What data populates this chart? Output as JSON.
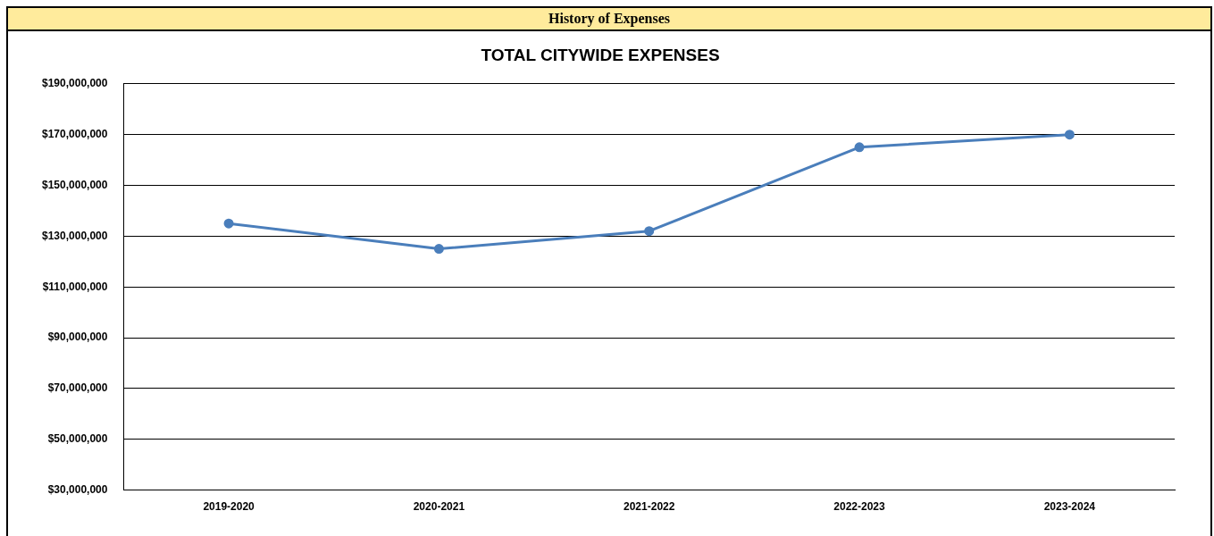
{
  "chart_data": {
    "type": "line",
    "title": "History of Expenses",
    "subtitle": "TOTAL CITYWIDE EXPENSES",
    "categories": [
      "2019-2020",
      "2020-2021",
      "2021-2022",
      "2022-2023",
      "2023-2024"
    ],
    "series": [
      {
        "color": "#4a7ebb",
        "values": [
          135000000,
          125000000,
          132000000,
          165000000,
          170000000
        ]
      }
    ],
    "ylim": [
      30000000,
      190000000
    ],
    "yticks": [
      {
        "value": 30000000,
        "label": "$30,000,000"
      },
      {
        "value": 50000000,
        "label": "$50,000,000"
      },
      {
        "value": 70000000,
        "label": "$70,000,000"
      },
      {
        "value": 90000000,
        "label": "$90,000,000"
      },
      {
        "value": 110000000,
        "label": "$110,000,000"
      },
      {
        "value": 130000000,
        "label": "$130,000,000"
      },
      {
        "value": 150000000,
        "label": "$150,000,000"
      },
      {
        "value": 170000000,
        "label": "$170,000,000"
      },
      {
        "value": 190000000,
        "label": "$190,000,000"
      }
    ],
    "grid": "y",
    "legend": false,
    "marker": "circle",
    "line_style": "solid"
  }
}
